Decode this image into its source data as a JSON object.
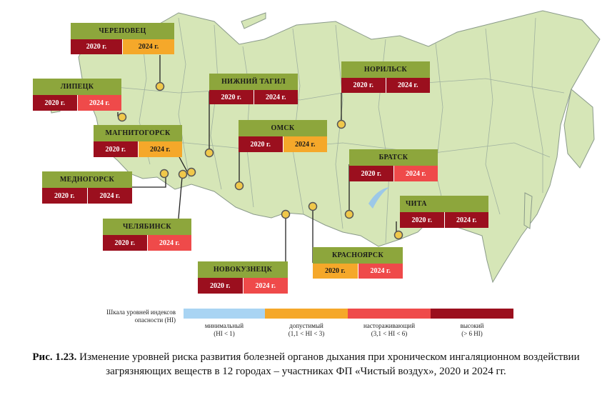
{
  "colors": {
    "land": "#d6e6b7",
    "border": "#8a9a8a",
    "name_band": "#8da63c",
    "minimal": "#a9d4f3",
    "acceptable": "#f5a82a",
    "alarming": "#ef4a4a",
    "high": "#9b0f1e"
  },
  "cities": [
    {
      "name": "ЧЕРЕПОВЕЦ",
      "y2020": "2020 г.",
      "y2024": "2024 г.",
      "level2020": "high",
      "level2024": "acceptable"
    },
    {
      "name": "ЛИПЕЦК",
      "y2020": "2020 г.",
      "y2024": "2024 г.",
      "level2020": "high",
      "level2024": "alarming"
    },
    {
      "name": "НИЖНИЙ ТАГИЛ",
      "y2020": "2020 г.",
      "y2024": "2024 г.",
      "level2020": "high",
      "level2024": "high"
    },
    {
      "name": "НОРИЛЬСК",
      "y2020": "2020 г.",
      "y2024": "2024 г.",
      "level2020": "high",
      "level2024": "high"
    },
    {
      "name": "МАГНИТОГОРСК",
      "y2020": "2020 г.",
      "y2024": "2024 г.",
      "level2020": "high",
      "level2024": "acceptable"
    },
    {
      "name": "ОМСК",
      "y2020": "2020 г.",
      "y2024": "2024 г.",
      "level2020": "high",
      "level2024": "acceptable"
    },
    {
      "name": "МЕДНОГОРСК",
      "y2020": "2020 г.",
      "y2024": "2024 г.",
      "level2020": "high",
      "level2024": "high"
    },
    {
      "name": "БРАТСК",
      "y2020": "2020 г.",
      "y2024": "2024 г.",
      "level2020": "high",
      "level2024": "alarming"
    },
    {
      "name": "ЧЕЛЯБИНСК",
      "y2020": "2020 г.",
      "y2024": "2024 г.",
      "level2020": "high",
      "level2024": "alarming"
    },
    {
      "name": "ЧИТА",
      "y2020": "2020 г.",
      "y2024": "2024 г.",
      "level2020": "high",
      "level2024": "high"
    },
    {
      "name": "НОВОКУЗНЕЦК",
      "y2020": "2020 г.",
      "y2024": "2024 г.",
      "level2020": "high",
      "level2024": "alarming"
    },
    {
      "name": "КРАСНОЯРСК",
      "y2020": "2020 г.",
      "y2024": "2024 г.",
      "level2020": "acceptable",
      "level2024": "alarming"
    }
  ],
  "scale": {
    "title": "Шкала уровней индексов опасности (HI)",
    "items": [
      {
        "key": "minimal",
        "label": "минимальный",
        "range": "(HI < 1)"
      },
      {
        "key": "acceptable",
        "label": "допустимый",
        "range": "(1,1 < HI < 3)"
      },
      {
        "key": "alarming",
        "label": "настораживающий",
        "range": "(3,1 < HI < 6)"
      },
      {
        "key": "high",
        "label": "высокий",
        "range": "(> 6 HI)"
      }
    ]
  },
  "caption": {
    "label": "Рис. 1.23.",
    "text": "Изменение уровней риска развития болезней органов дыхания при хроническом ингаляционном воздействии загрязняющих веществ в 12 городах – участниках ФП «Чистый воздух», 2020 и 2024 гг."
  }
}
